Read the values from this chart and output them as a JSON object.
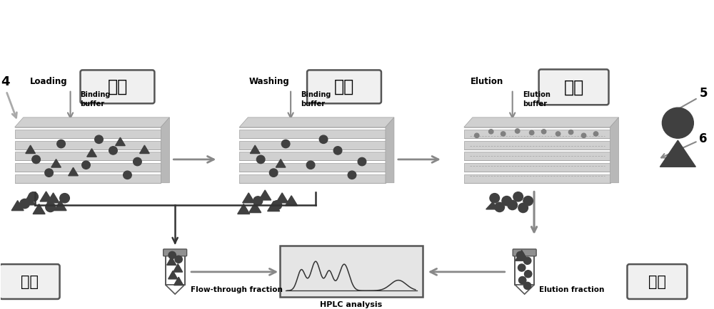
{
  "bg_color": "#ffffff",
  "title": "",
  "chinese_labels": {
    "shangyang": "上样",
    "linxi": "淡洗",
    "xituo": "洗脱",
    "liuchuan": "流穿",
    "xituo2": "洗脱"
  },
  "english_labels": {
    "loading": "Loading",
    "binding_buffer": "Binding\nbuffer",
    "washing": "Washing",
    "binding_buffer2": "Binding\nbuffer",
    "elution": "Elution",
    "elution_buffer": "Elution\nbuffer",
    "flow_through": "Flow-through fraction",
    "hplc": "HPLC analysis",
    "elution_fraction": "Elution fraction"
  },
  "numbers": {
    "four": "4",
    "five": "5",
    "six": "6"
  },
  "membrane_light": "#d0d0d0",
  "membrane_dark": "#a0a0a0",
  "membrane_line": "#888888",
  "particle_dark": "#404040",
  "particle_mid": "#606060",
  "box_border": "#555555",
  "box_fill": "#f0f0f0",
  "arrow_color": "#888888",
  "text_dark": "#000000",
  "bracket_color": "#333333"
}
